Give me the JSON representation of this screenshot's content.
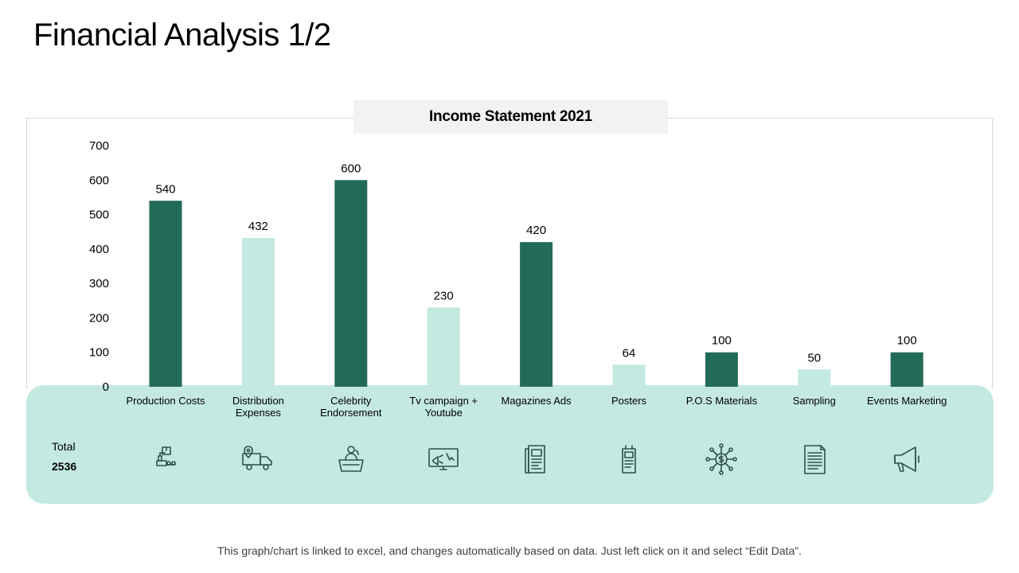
{
  "page": {
    "title": "Financial Analysis 1/2",
    "footnote": "This graph/chart is linked to excel, and changes automatically based on data. Just left click on it and select “Edit Data”."
  },
  "total": {
    "label": "Total",
    "value": "2536"
  },
  "colors": {
    "dark": "#236b59",
    "light": "#c3e9e0",
    "panel": "#c3e9e0",
    "icon": "#2f4f4a"
  },
  "icons": [
    "factory-robot-icon",
    "delivery-truck-icon",
    "speaker-podium-icon",
    "monitor-ad-icon",
    "magazine-icon",
    "poster-icon",
    "money-network-icon",
    "document-icon",
    "megaphone-icon"
  ],
  "chart_data": {
    "type": "bar",
    "title": "Income Statement 2021",
    "xlabel": "",
    "ylabel": "",
    "ylim": [
      0,
      700
    ],
    "yticks": [
      0,
      100,
      200,
      300,
      400,
      500,
      600,
      700
    ],
    "categories": [
      [
        "Production Costs"
      ],
      [
        "Distribution",
        "Expenses"
      ],
      [
        "Celebrity",
        "Endorsement"
      ],
      [
        "Tv campaign +",
        "Youtube"
      ],
      [
        "Magazines Ads"
      ],
      [
        "Posters"
      ],
      [
        "P.O.S Materials"
      ],
      [
        "Sampling"
      ],
      [
        "Events Marketing"
      ]
    ],
    "values": [
      540,
      432,
      600,
      230,
      420,
      64,
      100,
      50,
      100
    ],
    "bar_colors": [
      "dark",
      "light",
      "dark",
      "light",
      "dark",
      "light",
      "dark",
      "light",
      "dark"
    ],
    "data_labels": true,
    "grid": false,
    "legend": "none"
  }
}
